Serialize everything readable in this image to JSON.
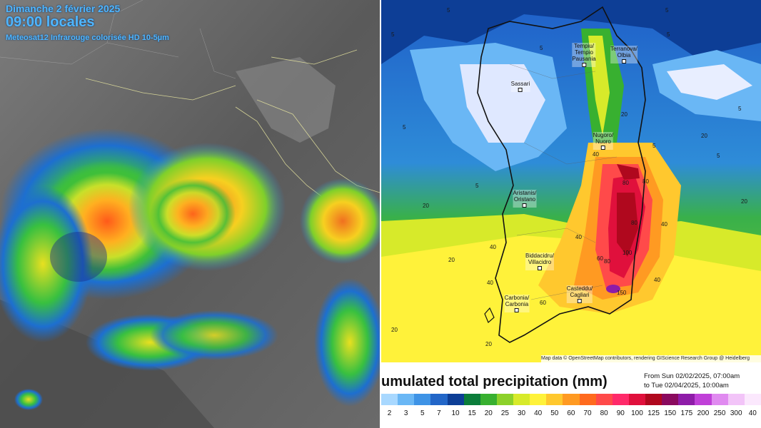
{
  "satellite": {
    "date": "Dimanche 2 février 2025",
    "time": "09:00 locales",
    "product": "Meteosat12 Infrarouge colorisée HD 10-5µm"
  },
  "precip_map": {
    "cities": [
      {
        "label": "Tempiu/\nTempio\nPausania"
      },
      {
        "label": "Terranova/\nOlbia"
      },
      {
        "label": "Sassari"
      },
      {
        "label": "Nugoro/\nNuoro"
      },
      {
        "label": "Aristanis/\nOristano"
      },
      {
        "label": "Biddacidru/\nVillacidro"
      },
      {
        "label": "Carbonia/\nCarbonia"
      },
      {
        "label": "Casteddu/\nCagliari"
      }
    ],
    "isolines": [
      "5",
      "5",
      "5",
      "5",
      "5",
      "5",
      "5",
      "5",
      "5",
      "5",
      "20",
      "20",
      "20",
      "20",
      "20",
      "20",
      "20",
      "40",
      "40",
      "40",
      "40",
      "40",
      "40",
      "60",
      "60",
      "80",
      "80",
      "80",
      "80",
      "100",
      "150"
    ],
    "attribution": "Map data © OpenStreetMap contributors, rendering GIScience Research Group @ Heidelberg",
    "legend": {
      "title": "umulated total precipitation (mm)",
      "range_from": "From Sun 02/02/2025, 07:00am",
      "range_to": "to Tue 02/04/2025, 10:00am",
      "ticks": [
        "2",
        "3",
        "5",
        "7",
        "10",
        "15",
        "20",
        "25",
        "30",
        "40",
        "50",
        "60",
        "70",
        "80",
        "90",
        "100",
        "125",
        "150",
        "175",
        "200",
        "250",
        "300",
        "40"
      ],
      "colors": [
        "#a8d8ff",
        "#6ab7f5",
        "#3e93e6",
        "#2266c8",
        "#0d3e96",
        "#0b7d3a",
        "#38b030",
        "#8cd12a",
        "#d7ea2a",
        "#fff23a",
        "#ffc82e",
        "#ff9a22",
        "#ff6a1e",
        "#ff4a4a",
        "#ff2a6a",
        "#e0103c",
        "#b0081e",
        "#8a0a5e",
        "#8e1ca8",
        "#c040d8",
        "#e08af0",
        "#f2c4f8",
        "#fbe8fd"
      ]
    }
  }
}
